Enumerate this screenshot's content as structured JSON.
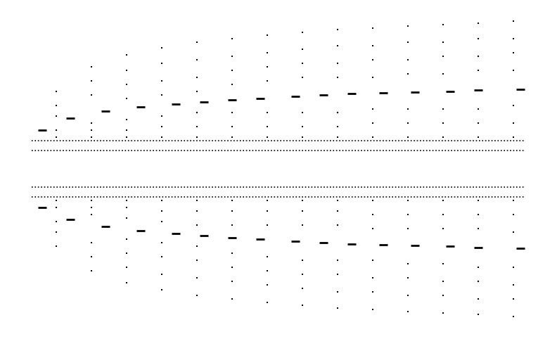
{
  "chart_data": {
    "type": "scatter",
    "tick_labels": false,
    "grid": false,
    "xlim": [
      0,
      792
    ],
    "ylim": [
      482,
      0
    ],
    "series": [
      {
        "type": "scatter",
        "marker": "dot",
        "color": "#000000",
        "x": [
          80,
          80,
          80,
          80,
          80,
          130,
          130,
          130,
          130,
          130,
          130,
          180,
          180,
          180,
          180,
          180,
          180,
          180,
          230,
          230,
          230,
          230,
          230,
          230,
          230,
          280,
          280,
          280,
          280,
          280,
          280,
          280,
          330,
          330,
          330,
          330,
          330,
          330,
          330,
          380,
          380,
          380,
          380,
          380,
          380,
          380,
          430,
          430,
          430,
          430,
          430,
          430,
          430,
          480,
          480,
          480,
          480,
          480,
          480,
          480,
          530,
          530,
          530,
          530,
          530,
          530,
          530,
          580,
          580,
          580,
          580,
          580,
          580,
          580,
          630,
          630,
          630,
          630,
          630,
          630,
          630,
          680,
          680,
          680,
          680,
          680,
          680,
          680,
          730,
          730,
          730,
          730,
          730,
          730,
          730
        ],
        "values": [
          130,
          150,
          165,
          185,
          195,
          95,
          115,
          135,
          175,
          185,
          195,
          78,
          100,
          120,
          140,
          170,
          185,
          195,
          68,
          90,
          115,
          135,
          165,
          180,
          195,
          60,
          85,
          110,
          130,
          160,
          180,
          195,
          55,
          80,
          100,
          120,
          160,
          180,
          195,
          50,
          75,
          95,
          115,
          160,
          180,
          195,
          46,
          70,
          90,
          110,
          160,
          180,
          195,
          42,
          65,
          90,
          110,
          160,
          180,
          195,
          40,
          65,
          85,
          110,
          155,
          175,
          195,
          37,
          60,
          85,
          105,
          155,
          175,
          195,
          35,
          60,
          80,
          105,
          155,
          175,
          195,
          33,
          55,
          80,
          100,
          155,
          175,
          195,
          30,
          55,
          75,
          100,
          150,
          175,
          195
        ]
      },
      {
        "type": "scatter",
        "marker": "dot",
        "color": "#000000",
        "x": [
          80,
          80,
          80,
          80,
          80,
          130,
          130,
          130,
          130,
          130,
          130,
          180,
          180,
          180,
          180,
          180,
          180,
          180,
          230,
          230,
          230,
          230,
          230,
          230,
          230,
          280,
          280,
          280,
          280,
          280,
          280,
          280,
          330,
          330,
          330,
          330,
          330,
          330,
          330,
          380,
          380,
          380,
          380,
          380,
          380,
          380,
          430,
          430,
          430,
          430,
          430,
          430,
          430,
          480,
          480,
          480,
          480,
          480,
          480,
          480,
          530,
          530,
          530,
          530,
          530,
          530,
          530,
          580,
          580,
          580,
          580,
          580,
          580,
          580,
          630,
          630,
          630,
          630,
          630,
          630,
          630,
          680,
          680,
          680,
          680,
          680,
          680,
          680,
          730,
          730,
          730,
          730,
          730,
          730,
          730
        ],
        "values": [
          350,
          330,
          315,
          295,
          285,
          385,
          365,
          345,
          305,
          295,
          285,
          402,
          380,
          360,
          340,
          310,
          295,
          285,
          412,
          390,
          365,
          345,
          315,
          300,
          285,
          420,
          395,
          370,
          350,
          320,
          300,
          285,
          425,
          400,
          380,
          360,
          320,
          300,
          285,
          430,
          405,
          385,
          365,
          320,
          300,
          285,
          434,
          410,
          390,
          370,
          320,
          300,
          285,
          438,
          415,
          390,
          370,
          320,
          300,
          285,
          440,
          415,
          395,
          370,
          325,
          305,
          285,
          443,
          420,
          395,
          375,
          325,
          305,
          285,
          445,
          420,
          400,
          375,
          325,
          305,
          285,
          447,
          425,
          400,
          380,
          325,
          305,
          285,
          450,
          425,
          405,
          380,
          330,
          305,
          285
        ]
      },
      {
        "type": "scatter",
        "marker": "dash",
        "color": "#000000",
        "x": [
          60,
          100,
          150,
          200,
          250,
          290,
          330,
          370,
          420,
          460,
          500,
          545,
          590,
          640,
          680,
          740
        ],
        "values": [
          185,
          168,
          158,
          152,
          148,
          145,
          142,
          140,
          137,
          135,
          133,
          132,
          131,
          130,
          128,
          127
        ]
      },
      {
        "type": "scatter",
        "marker": "dash",
        "color": "#000000",
        "x": [
          60,
          100,
          150,
          200,
          250,
          290,
          330,
          370,
          420,
          460,
          500,
          545,
          590,
          640,
          680,
          740
        ],
        "values": [
          295,
          312,
          322,
          328,
          332,
          335,
          338,
          340,
          343,
          345,
          347,
          348,
          349,
          350,
          352,
          353
        ]
      },
      {
        "type": "line",
        "line_style": "dotted",
        "color": "#000000",
        "x": [
          45,
          745
        ],
        "values": [
          200,
          200
        ]
      },
      {
        "type": "line",
        "line_style": "dotted",
        "color": "#000000",
        "x": [
          45,
          745
        ],
        "values": [
          214,
          214
        ]
      },
      {
        "type": "line",
        "line_style": "dotted",
        "color": "#000000",
        "x": [
          45,
          745
        ],
        "values": [
          266,
          266
        ]
      },
      {
        "type": "line",
        "line_style": "dotted",
        "color": "#000000",
        "x": [
          45,
          745
        ],
        "values": [
          280,
          280
        ]
      }
    ]
  }
}
